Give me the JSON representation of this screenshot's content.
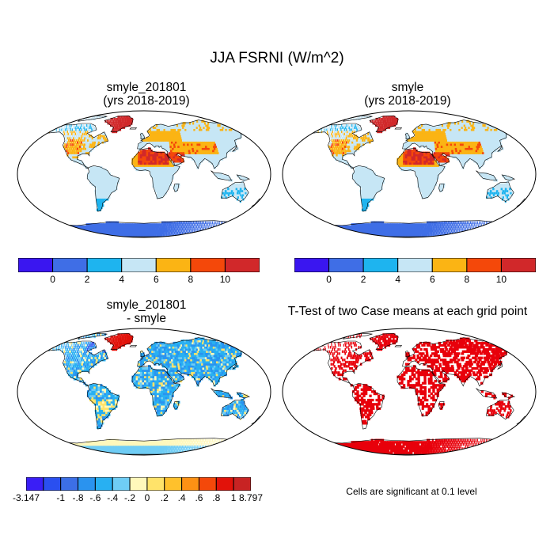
{
  "title": "JJA FSRNI (W/m^2)",
  "panels": [
    {
      "title_line1": "smyle_201801",
      "title_line2": "(yrs 2018-2019)"
    },
    {
      "title_line1": "smyle",
      "title_line2": "(yrs 2018-2019)"
    },
    {
      "title_line1": "smyle_201801",
      "title_line2": "- smyle"
    },
    {
      "title_line1": "T-Test of two Case means at each grid point",
      "title_line2": ""
    }
  ],
  "colorbar_top": {
    "colors": [
      "#3a16f0",
      "#3f6ee6",
      "#1eb4ef",
      "#c6e6f5",
      "#fbb414",
      "#f4480a",
      "#d1282a"
    ],
    "labels": [
      "0",
      "2",
      "4",
      "6",
      "8",
      "10"
    ]
  },
  "colorbar_diff": {
    "colors": [
      "#3a1ef6",
      "#2a4ff0",
      "#3c6fe6",
      "#2a93ef",
      "#28b0f2",
      "#6fcdf5",
      "#fff8bb",
      "#ffe36a",
      "#ffc12c",
      "#fd9114",
      "#f4480a",
      "#e2120a",
      "#c82323"
    ],
    "labels": [
      "-3.147",
      "-1",
      "-.8",
      "-.6",
      "-.4",
      "-.2",
      "0",
      ".2",
      ".4",
      ".6",
      ".8",
      "1",
      "8.797"
    ]
  },
  "note": "Cells are significant at 0.1 level"
}
